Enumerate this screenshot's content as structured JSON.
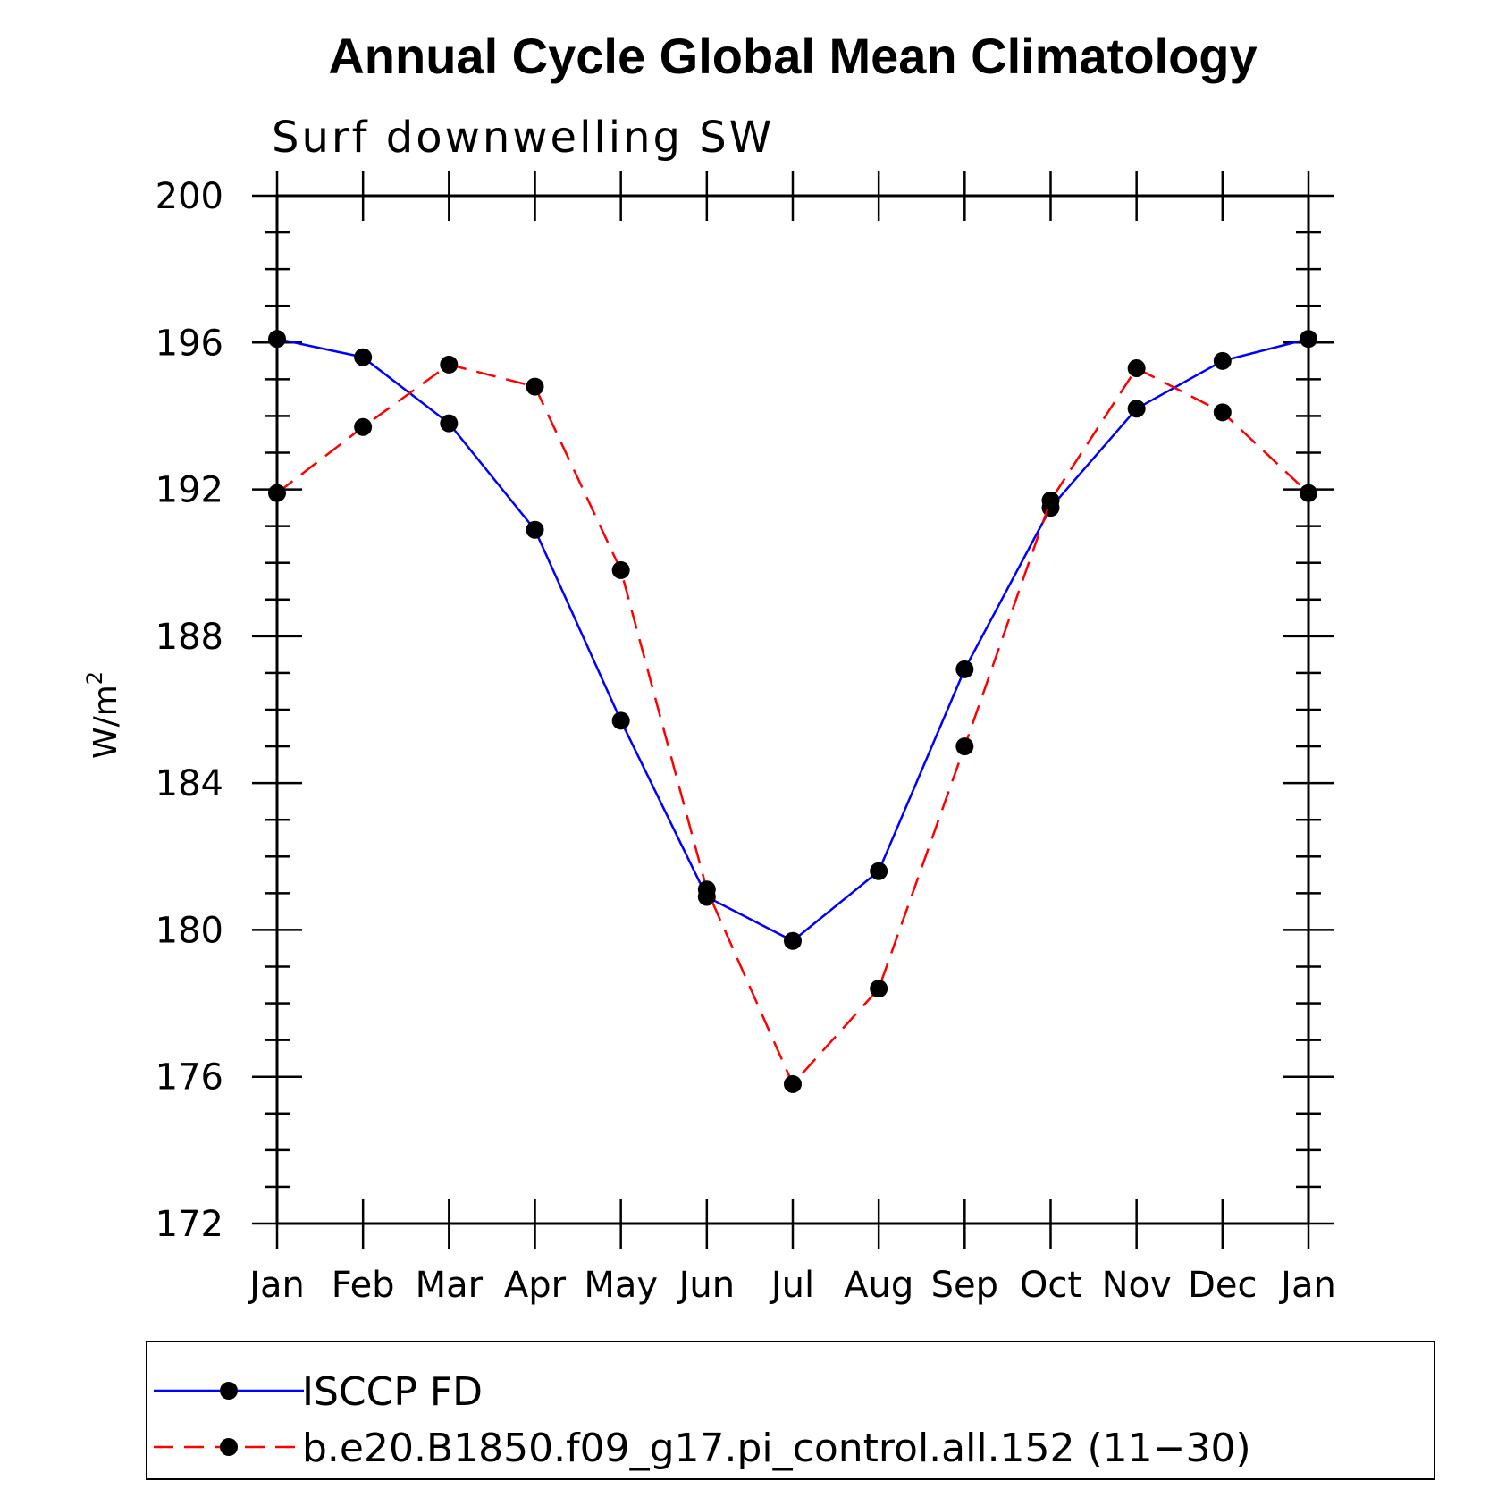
{
  "chart_data": {
    "type": "line",
    "title": "Annual Cycle Global Mean Climatology",
    "subtitle": "Surf downwelling SW",
    "ylabel": "W/m",
    "ylabel_superscript": "2",
    "xlabel": "",
    "ylim": [
      172,
      200
    ],
    "yticks": [
      172,
      176,
      180,
      184,
      188,
      192,
      196,
      200
    ],
    "categories": [
      "Jan",
      "Feb",
      "Mar",
      "Apr",
      "May",
      "Jun",
      "Jul",
      "Aug",
      "Sep",
      "Oct",
      "Nov",
      "Dec",
      "Jan"
    ],
    "series": [
      {
        "name": "ISCCP FD",
        "color": "#0000ff",
        "style": "solid",
        "values": [
          196.1,
          195.6,
          193.8,
          190.9,
          185.7,
          180.9,
          179.7,
          181.6,
          187.1,
          191.5,
          194.2,
          195.5,
          196.1
        ]
      },
      {
        "name": "b.e20.B1850.f09_g17.pi_control.all.152 (11−30)",
        "color": "#ff0000",
        "style": "dashed",
        "values": [
          191.9,
          193.7,
          195.4,
          194.8,
          189.8,
          181.1,
          175.8,
          178.4,
          185.0,
          191.7,
          195.3,
          194.1,
          191.9
        ]
      }
    ],
    "legend_position": "bottom"
  }
}
